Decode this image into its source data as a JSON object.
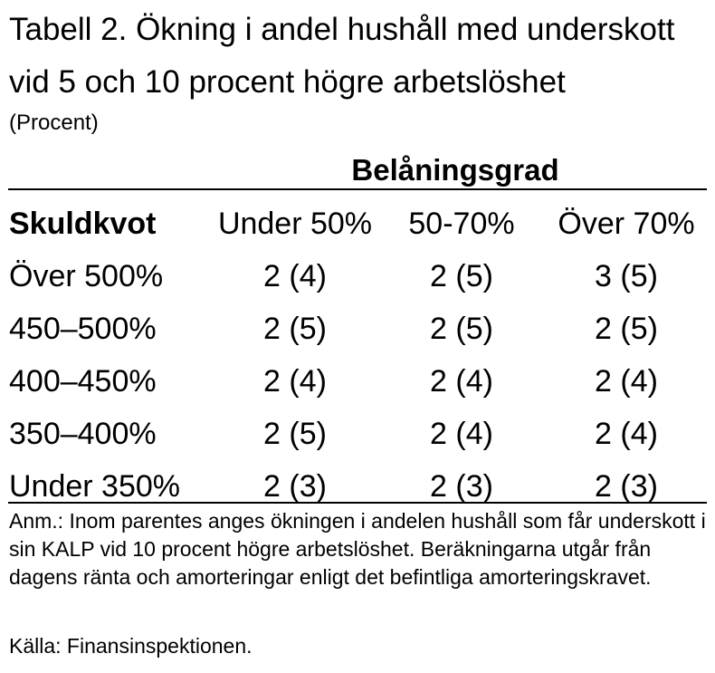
{
  "title": "Tabell 2. Ökning i andel hushåll med underskott vid 5 och 10 procent högre arbetslöshet",
  "unit": "(Procent)",
  "group_header": "Belåningsgrad",
  "columns": [
    "Skuldkvot",
    "Under 50%",
    "50-70%",
    "Över 70%"
  ],
  "rows": [
    [
      "Över 500%",
      "2 (4)",
      "2 (5)",
      "3 (5)"
    ],
    [
      "450–500%",
      "2 (5)",
      "2 (5)",
      "2 (5)"
    ],
    [
      "400–450%",
      "2 (4)",
      "2 (4)",
      "2 (4)"
    ],
    [
      "350–400%",
      "2 (5)",
      "2 (4)",
      "2 (4)"
    ],
    [
      "Under 350%",
      "2 (3)",
      "2 (3)",
      "2 (3)"
    ]
  ],
  "note": "Anm.: Inom parentes anges ökningen i andelen hushåll som får underskott i sin KALP vid 10 procent högre arbetslöshet. Beräkningarna utgår från dagens ränta och amorteringar enligt det befintliga amorteringskravet.",
  "source": "Källa: Finansinspektionen."
}
